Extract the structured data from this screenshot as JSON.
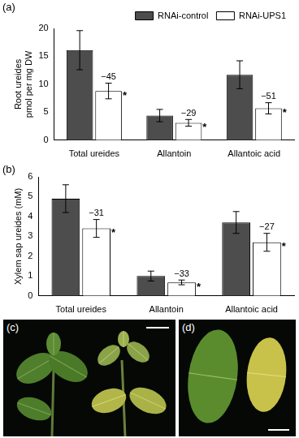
{
  "chart_data": [
    {
      "type": "bar",
      "panel": "(a)",
      "ylabel": [
        "Root ureides",
        "pmol per mg DW"
      ],
      "categories": [
        "Total ureides",
        "Allantoin",
        "Allantoic acid"
      ],
      "series": [
        {
          "name": "RNAi-control",
          "color": "#4d4d4d",
          "values": [
            16.1,
            4.4,
            11.7
          ],
          "errors": [
            3.5,
            1.1,
            2.5
          ]
        },
        {
          "name": "RNAi-UPS1",
          "color": "#ffffff",
          "values": [
            8.8,
            3.1,
            5.7
          ],
          "errors": [
            1.4,
            0.6,
            1.0
          ],
          "annotations": [
            "−45",
            "−29",
            "−51"
          ],
          "significance": [
            "*",
            "*",
            "*"
          ]
        }
      ],
      "ylim": [
        0,
        20
      ],
      "yticks": [
        0,
        5,
        10,
        15,
        20
      ],
      "grid": false,
      "legend": "upper right"
    },
    {
      "type": "bar",
      "panel": "(b)",
      "ylabel": "Xylem sap ureides (mM)",
      "categories": [
        "Total ureides",
        "Allantoin",
        "Allantoic acid"
      ],
      "series": [
        {
          "name": "RNAi-control",
          "color": "#4d4d4d",
          "values": [
            4.9,
            1.0,
            3.7
          ],
          "errors": [
            0.7,
            0.25,
            0.55
          ]
        },
        {
          "name": "RNAi-UPS1",
          "color": "#ffffff",
          "values": [
            3.4,
            0.68,
            2.7
          ],
          "errors": [
            0.45,
            0.12,
            0.45
          ],
          "annotations": [
            "−31",
            "−33",
            "−27"
          ],
          "significance": [
            "*",
            "*",
            "*"
          ]
        }
      ],
      "ylim": [
        0,
        6
      ],
      "yticks": [
        0,
        1,
        2,
        3,
        4,
        5,
        6
      ],
      "grid": false,
      "legend": false
    }
  ],
  "images": [
    {
      "label": "(c)"
    },
    {
      "label": "(d)"
    }
  ]
}
